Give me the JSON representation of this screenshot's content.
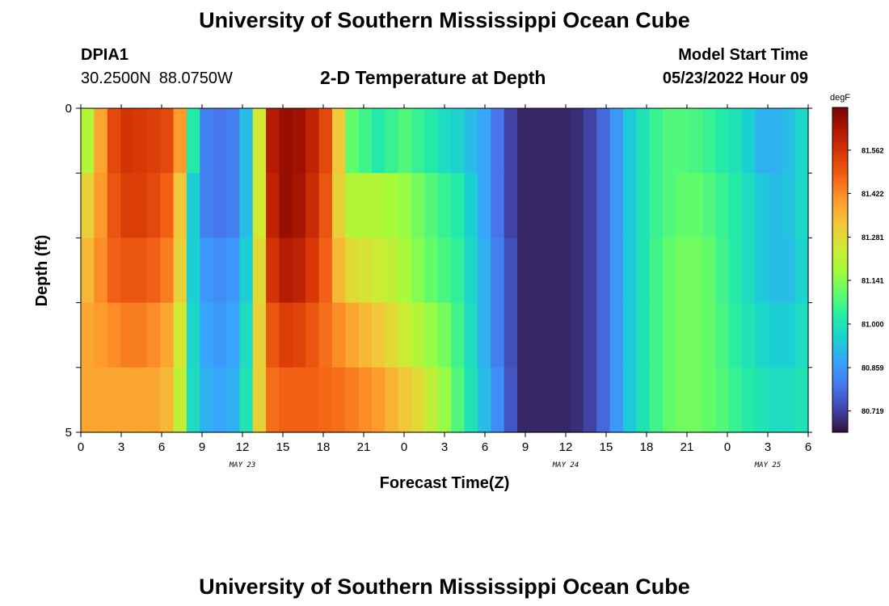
{
  "header": {
    "title": "University of Southern Mississippi Ocean Cube",
    "station_id": "DPIA1",
    "latitude": "30.2500N",
    "longitude": "88.0750W",
    "subtitle": "2-D Temperature at Depth",
    "model_start_label": "Model Start Time",
    "model_start_value": "05/23/2022 Hour 09"
  },
  "footer": {
    "title": "University of Southern Mississippi Ocean Cube"
  },
  "chart_data": {
    "type": "heatmap",
    "title": "2-D Temperature at Depth",
    "xlabel": "Forecast Time(Z)",
    "ylabel": "Depth (ft)",
    "x_tick_labels": [
      "0",
      "3",
      "6",
      "9",
      "12",
      "15",
      "18",
      "21",
      "0",
      "3",
      "6",
      "9",
      "12",
      "15",
      "18",
      "21",
      "0",
      "3",
      "6"
    ],
    "x_hours_per_tick": 3,
    "x_range_hours": [
      0,
      54
    ],
    "date_labels": [
      {
        "label": "MAY 23",
        "hour": 12
      },
      {
        "label": "MAY 24",
        "hour": 36
      },
      {
        "label": "MAY 25",
        "hour": 51
      }
    ],
    "y_tick_labels": [
      "0",
      "5"
    ],
    "ylim": [
      0,
      5
    ],
    "depth_rows": 5,
    "colorbar": {
      "unit": "degF",
      "ticks": [
        "81.562",
        "81.422",
        "81.281",
        "81.141",
        "81.000",
        "80.859",
        "80.719"
      ],
      "min": 80.65,
      "max": 81.7,
      "colors": [
        "#30123b",
        "#4145ab",
        "#4675ed",
        "#39a2fc",
        "#1bcfd4",
        "#24eca6",
        "#61fc6c",
        "#a4fc3b",
        "#d1e834",
        "#f3c63a",
        "#fe9b2d",
        "#f36315",
        "#d93806",
        "#b11901",
        "#7a0403"
      ]
    },
    "hours": [
      0,
      1,
      2,
      3,
      4,
      5,
      6,
      7,
      8,
      9,
      10,
      11,
      12,
      13,
      14,
      15,
      16,
      17,
      18,
      19,
      20,
      21,
      22,
      23,
      24,
      25,
      26,
      27,
      28,
      29,
      30,
      31,
      32,
      33,
      34,
      35,
      36,
      37,
      38,
      39,
      40,
      41,
      42,
      43,
      44,
      45,
      46,
      47,
      48,
      49,
      50,
      51,
      52,
      53,
      54
    ],
    "series": [
      {
        "depth_row": 0,
        "values": [
          81.2,
          81.38,
          81.52,
          81.56,
          81.55,
          81.54,
          81.52,
          81.4,
          81.02,
          80.82,
          80.8,
          80.82,
          80.92,
          81.25,
          81.62,
          81.66,
          81.65,
          81.6,
          81.52,
          81.32,
          81.1,
          81.06,
          81.02,
          81.05,
          81.08,
          81.05,
          81.02,
          80.98,
          80.96,
          80.92,
          80.88,
          80.8,
          80.72,
          80.68,
          80.68,
          80.68,
          80.68,
          80.69,
          80.72,
          80.78,
          80.86,
          80.94,
          81.0,
          81.05,
          81.08,
          81.08,
          81.07,
          81.05,
          81.02,
          81.0,
          80.95,
          80.9,
          80.9,
          80.92,
          80.97
        ]
      },
      {
        "depth_row": 1,
        "values": [
          81.3,
          81.4,
          81.5,
          81.54,
          81.54,
          81.52,
          81.48,
          81.32,
          80.95,
          80.82,
          80.8,
          80.82,
          80.92,
          81.25,
          81.6,
          81.66,
          81.64,
          81.58,
          81.5,
          81.3,
          81.2,
          81.2,
          81.2,
          81.18,
          81.16,
          81.12,
          81.08,
          81.05,
          81.02,
          80.95,
          80.88,
          80.8,
          80.72,
          80.68,
          80.68,
          80.68,
          80.68,
          80.69,
          80.72,
          80.78,
          80.86,
          80.94,
          81.0,
          81.05,
          81.08,
          81.1,
          81.1,
          81.08,
          81.05,
          81.02,
          80.98,
          80.94,
          80.92,
          80.93,
          80.97
        ]
      },
      {
        "depth_row": 2,
        "values": [
          81.35,
          81.42,
          81.48,
          81.5,
          81.5,
          81.48,
          81.44,
          81.3,
          80.95,
          80.86,
          80.84,
          80.86,
          80.95,
          81.28,
          81.56,
          81.62,
          81.6,
          81.55,
          81.48,
          81.35,
          81.28,
          81.26,
          81.24,
          81.22,
          81.18,
          81.14,
          81.1,
          81.07,
          81.04,
          80.97,
          80.9,
          80.82,
          80.74,
          80.68,
          80.68,
          80.68,
          80.68,
          80.69,
          80.72,
          80.78,
          80.86,
          80.94,
          81.0,
          81.06,
          81.1,
          81.12,
          81.12,
          81.1,
          81.06,
          81.02,
          80.98,
          80.94,
          80.92,
          80.92,
          80.96
        ]
      },
      {
        "depth_row": 3,
        "values": [
          81.38,
          81.4,
          81.42,
          81.44,
          81.44,
          81.42,
          81.38,
          81.25,
          80.97,
          80.88,
          80.86,
          80.88,
          80.98,
          81.3,
          81.5,
          81.54,
          81.53,
          81.5,
          81.46,
          81.42,
          81.38,
          81.35,
          81.32,
          81.28,
          81.24,
          81.2,
          81.16,
          81.12,
          81.06,
          80.98,
          80.9,
          80.82,
          80.74,
          80.68,
          80.68,
          80.68,
          80.68,
          80.69,
          80.72,
          80.78,
          80.86,
          80.94,
          81.0,
          81.06,
          81.1,
          81.12,
          81.12,
          81.1,
          81.07,
          81.03,
          81.0,
          80.97,
          80.95,
          80.95,
          80.98
        ]
      },
      {
        "depth_row": 4,
        "values": [
          81.38,
          81.38,
          81.38,
          81.38,
          81.38,
          81.38,
          81.35,
          81.22,
          80.98,
          80.9,
          80.88,
          80.9,
          81.0,
          81.3,
          81.46,
          81.48,
          81.48,
          81.48,
          81.47,
          81.46,
          81.44,
          81.42,
          81.4,
          81.36,
          81.32,
          81.28,
          81.22,
          81.16,
          81.08,
          81.0,
          80.92,
          80.84,
          80.75,
          80.68,
          80.68,
          80.68,
          80.68,
          80.69,
          80.72,
          80.78,
          80.86,
          80.94,
          81.0,
          81.06,
          81.1,
          81.12,
          81.12,
          81.1,
          81.08,
          81.05,
          81.02,
          81.0,
          80.98,
          80.98,
          81.0
        ]
      }
    ]
  }
}
